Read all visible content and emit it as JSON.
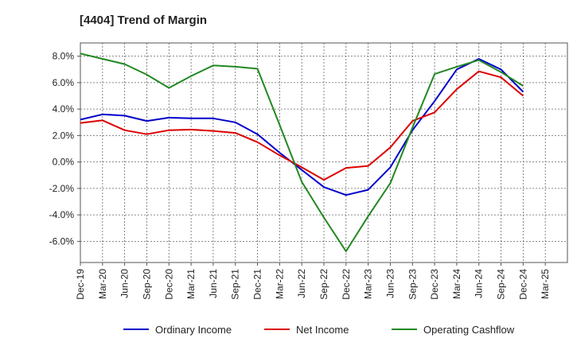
{
  "chart_data": {
    "type": "line",
    "title": "[4404]  Trend of Margin",
    "xlabel": "",
    "ylabel": "",
    "categories": [
      "Dec-19",
      "Mar-20",
      "Jun-20",
      "Sep-20",
      "Dec-20",
      "Mar-21",
      "Jun-21",
      "Sep-21",
      "Dec-21",
      "Mar-22",
      "Jun-22",
      "Sep-22",
      "Dec-22",
      "Mar-23",
      "Jun-23",
      "Sep-23",
      "Dec-23",
      "Mar-24",
      "Jun-24",
      "Sep-24",
      "Dec-24",
      "Mar-25"
    ],
    "ylim": [
      -7.6,
      9.0
    ],
    "yticks": [
      8.0,
      6.0,
      4.0,
      2.0,
      0.0,
      -2.0,
      -4.0,
      -6.0
    ],
    "ytick_labels": [
      "8.0%",
      "6.0%",
      "4.0%",
      "2.0%",
      "0.0%",
      "-2.0%",
      "-4.0%",
      "-6.0%"
    ],
    "grid": true,
    "legend_position": "bottom",
    "series": [
      {
        "name": "Ordinary Income",
        "color": "#0000cc",
        "values": [
          3.2,
          3.6,
          3.5,
          3.1,
          3.35,
          3.3,
          3.3,
          3.0,
          2.1,
          0.7,
          -0.6,
          -1.9,
          -2.5,
          -2.1,
          -0.4,
          2.4,
          4.6,
          7.0,
          7.8,
          7.0,
          5.3,
          null
        ]
      },
      {
        "name": "Net Income",
        "color": "#dd0000",
        "values": [
          2.95,
          3.15,
          2.4,
          2.1,
          2.4,
          2.45,
          2.35,
          2.2,
          1.5,
          0.5,
          -0.4,
          -1.35,
          -0.45,
          -0.3,
          1.1,
          3.1,
          3.75,
          5.5,
          6.85,
          6.4,
          5.0,
          null
        ]
      },
      {
        "name": "Operating Cashflow",
        "color": "#228822",
        "values": [
          8.2,
          7.8,
          7.4,
          6.6,
          5.6,
          6.5,
          7.3,
          7.2,
          7.05,
          2.8,
          -1.5,
          -4.2,
          -6.75,
          -4.1,
          -1.6,
          2.6,
          6.65,
          7.2,
          7.7,
          6.8,
          5.75,
          null
        ]
      }
    ]
  }
}
